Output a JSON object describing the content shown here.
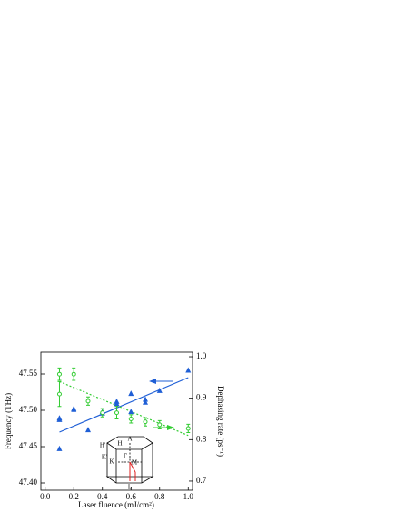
{
  "chart_data": {
    "type": "scatter",
    "xlabel": "Laser fluence (mJ/cm²)",
    "ylabel": "Frequency (THz)",
    "y2label": "Dephasing rate (ps⁻¹)",
    "xlim": [
      -0.03,
      1.03
    ],
    "xticks": [
      {
        "value": 0.0,
        "label": "0.0"
      },
      0.2,
      0.4,
      0.6,
      0.8,
      {
        "value": 1.0,
        "label": "1.0"
      }
    ],
    "ylim": [
      47.39,
      47.58
    ],
    "yticks": [
      {
        "value": 47.4,
        "label": "47.40"
      },
      47.45,
      {
        "value": 47.5,
        "label": "47.50"
      },
      47.55
    ],
    "y2lim": [
      0.678,
      1.011
    ],
    "y2ticks": [
      0.7,
      0.8,
      0.9,
      {
        "value": 1.0,
        "label": "1.0"
      }
    ],
    "series": [
      {
        "name": "Frequency",
        "color": "#1f5fd6",
        "marker": "triangle",
        "x": [
          0.1,
          0.1,
          0.1,
          0.2,
          0.2,
          0.3,
          0.4,
          0.4,
          0.5,
          0.5,
          0.6,
          0.6,
          0.7,
          0.7,
          0.8,
          1.0
        ],
        "values": [
          47.447,
          47.487,
          47.489,
          47.502,
          47.501,
          47.473,
          47.498,
          47.496,
          47.512,
          47.509,
          47.523,
          47.498,
          47.515,
          47.511,
          47.527,
          47.555
        ]
      },
      {
        "name": "Dephasing rate",
        "color": "#33cc33",
        "marker": "open-circle",
        "axis": "y2",
        "x": [
          0.1,
          0.1,
          0.2,
          0.3,
          0.4,
          0.5,
          0.6,
          0.7,
          0.8,
          1.0
        ],
        "values": [
          0.958,
          0.91,
          0.958,
          0.893,
          0.865,
          0.865,
          0.85,
          0.843,
          0.836,
          0.827
        ],
        "errors": [
          0.015,
          0.03,
          0.015,
          0.01,
          0.01,
          0.015,
          0.01,
          0.01,
          0.01,
          0.01
        ]
      }
    ],
    "fits": [
      {
        "color": "#1f5fd6",
        "dash": false,
        "x": [
          0.1,
          1.0
        ],
        "values": [
          47.47,
          47.545
        ]
      },
      {
        "color": "#33cc33",
        "dash": true,
        "axis": "y2",
        "x": [
          0.1,
          1.0
        ],
        "values": [
          0.94,
          0.81
        ]
      }
    ],
    "inset": {
      "labels": [
        "A",
        "H",
        "H'",
        "K",
        "K'",
        "M",
        "L",
        "Γ"
      ]
    }
  }
}
